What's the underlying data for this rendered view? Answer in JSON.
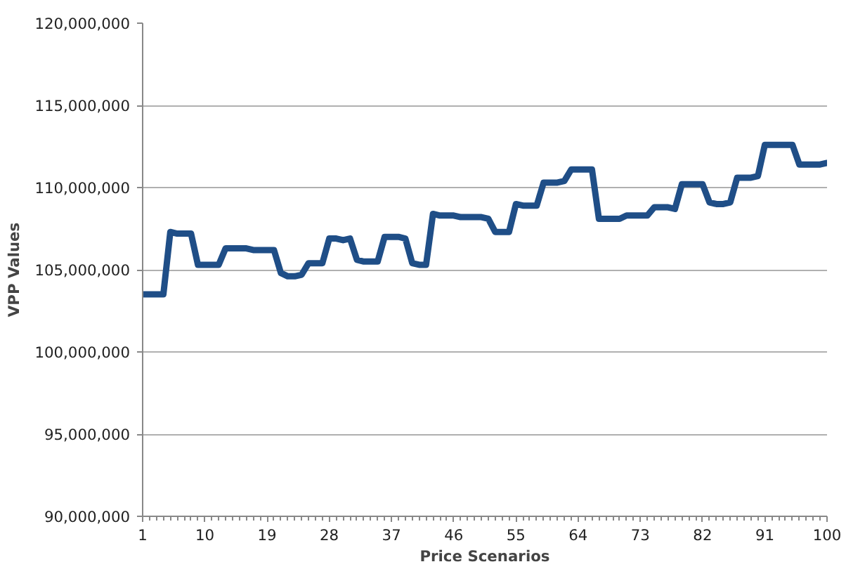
{
  "chart_data": {
    "type": "line",
    "xlabel": "Price Scenarios",
    "ylabel": "VPP Values",
    "x": [
      1,
      2,
      3,
      4,
      5,
      6,
      7,
      8,
      9,
      10,
      11,
      12,
      13,
      14,
      15,
      16,
      17,
      18,
      19,
      20,
      21,
      22,
      23,
      24,
      25,
      26,
      27,
      28,
      29,
      30,
      31,
      32,
      33,
      34,
      35,
      36,
      37,
      38,
      39,
      40,
      41,
      42,
      43,
      44,
      45,
      46,
      47,
      48,
      49,
      50,
      51,
      52,
      53,
      54,
      55,
      56,
      57,
      58,
      59,
      60,
      61,
      62,
      63,
      64,
      65,
      66,
      67,
      68,
      69,
      70,
      71,
      72,
      73,
      74,
      75,
      76,
      77,
      78,
      79,
      80,
      81,
      82,
      83,
      84,
      85,
      86,
      87,
      88,
      89,
      90,
      91,
      92,
      93,
      94,
      95,
      96,
      97,
      98,
      99,
      100
    ],
    "series": [
      {
        "color": "#1f4e87",
        "values": [
          103500000,
          103500000,
          103500000,
          103500000,
          107300000,
          107200000,
          107200000,
          107200000,
          105300000,
          105300000,
          105300000,
          105300000,
          106300000,
          106300000,
          106300000,
          106300000,
          106200000,
          106200000,
          106200000,
          106200000,
          104800000,
          104600000,
          104600000,
          104700000,
          105400000,
          105400000,
          105400000,
          106900000,
          106900000,
          106800000,
          106900000,
          105600000,
          105500000,
          105500000,
          105500000,
          107000000,
          107000000,
          107000000,
          106900000,
          105400000,
          105300000,
          105300000,
          108400000,
          108300000,
          108300000,
          108300000,
          108200000,
          108200000,
          108200000,
          108200000,
          108100000,
          107300000,
          107300000,
          107300000,
          109000000,
          108900000,
          108900000,
          108900000,
          110300000,
          110300000,
          110300000,
          110400000,
          111100000,
          111100000,
          111100000,
          111100000,
          108100000,
          108100000,
          108100000,
          108100000,
          108300000,
          108300000,
          108300000,
          108300000,
          108800000,
          108800000,
          108800000,
          108700000,
          110200000,
          110200000,
          110200000,
          110200000,
          109100000,
          109000000,
          109000000,
          109100000,
          110600000,
          110600000,
          110600000,
          110700000,
          112600000,
          112600000,
          112600000,
          112600000,
          112600000,
          111400000,
          111400000,
          111400000,
          111400000,
          111500000
        ]
      }
    ],
    "xlim": [
      1,
      100
    ],
    "xticks": [
      1,
      10,
      19,
      28,
      37,
      46,
      55,
      64,
      73,
      82,
      91,
      100
    ],
    "ylim": [
      90000000,
      120000000
    ],
    "yticks": [
      {
        "value": 90000000,
        "label": "90,000,000"
      },
      {
        "value": 95000000,
        "label": "95,000,000"
      },
      {
        "value": 100000000,
        "label": "100,000,000"
      },
      {
        "value": 105000000,
        "label": "105,000,000"
      },
      {
        "value": 110000000,
        "label": "110,000,000"
      },
      {
        "value": 115000000,
        "label": "115,000,000"
      },
      {
        "value": 120000000,
        "label": "120,000,000"
      }
    ],
    "grid": "y",
    "marker": "none",
    "line_style": "solid"
  }
}
